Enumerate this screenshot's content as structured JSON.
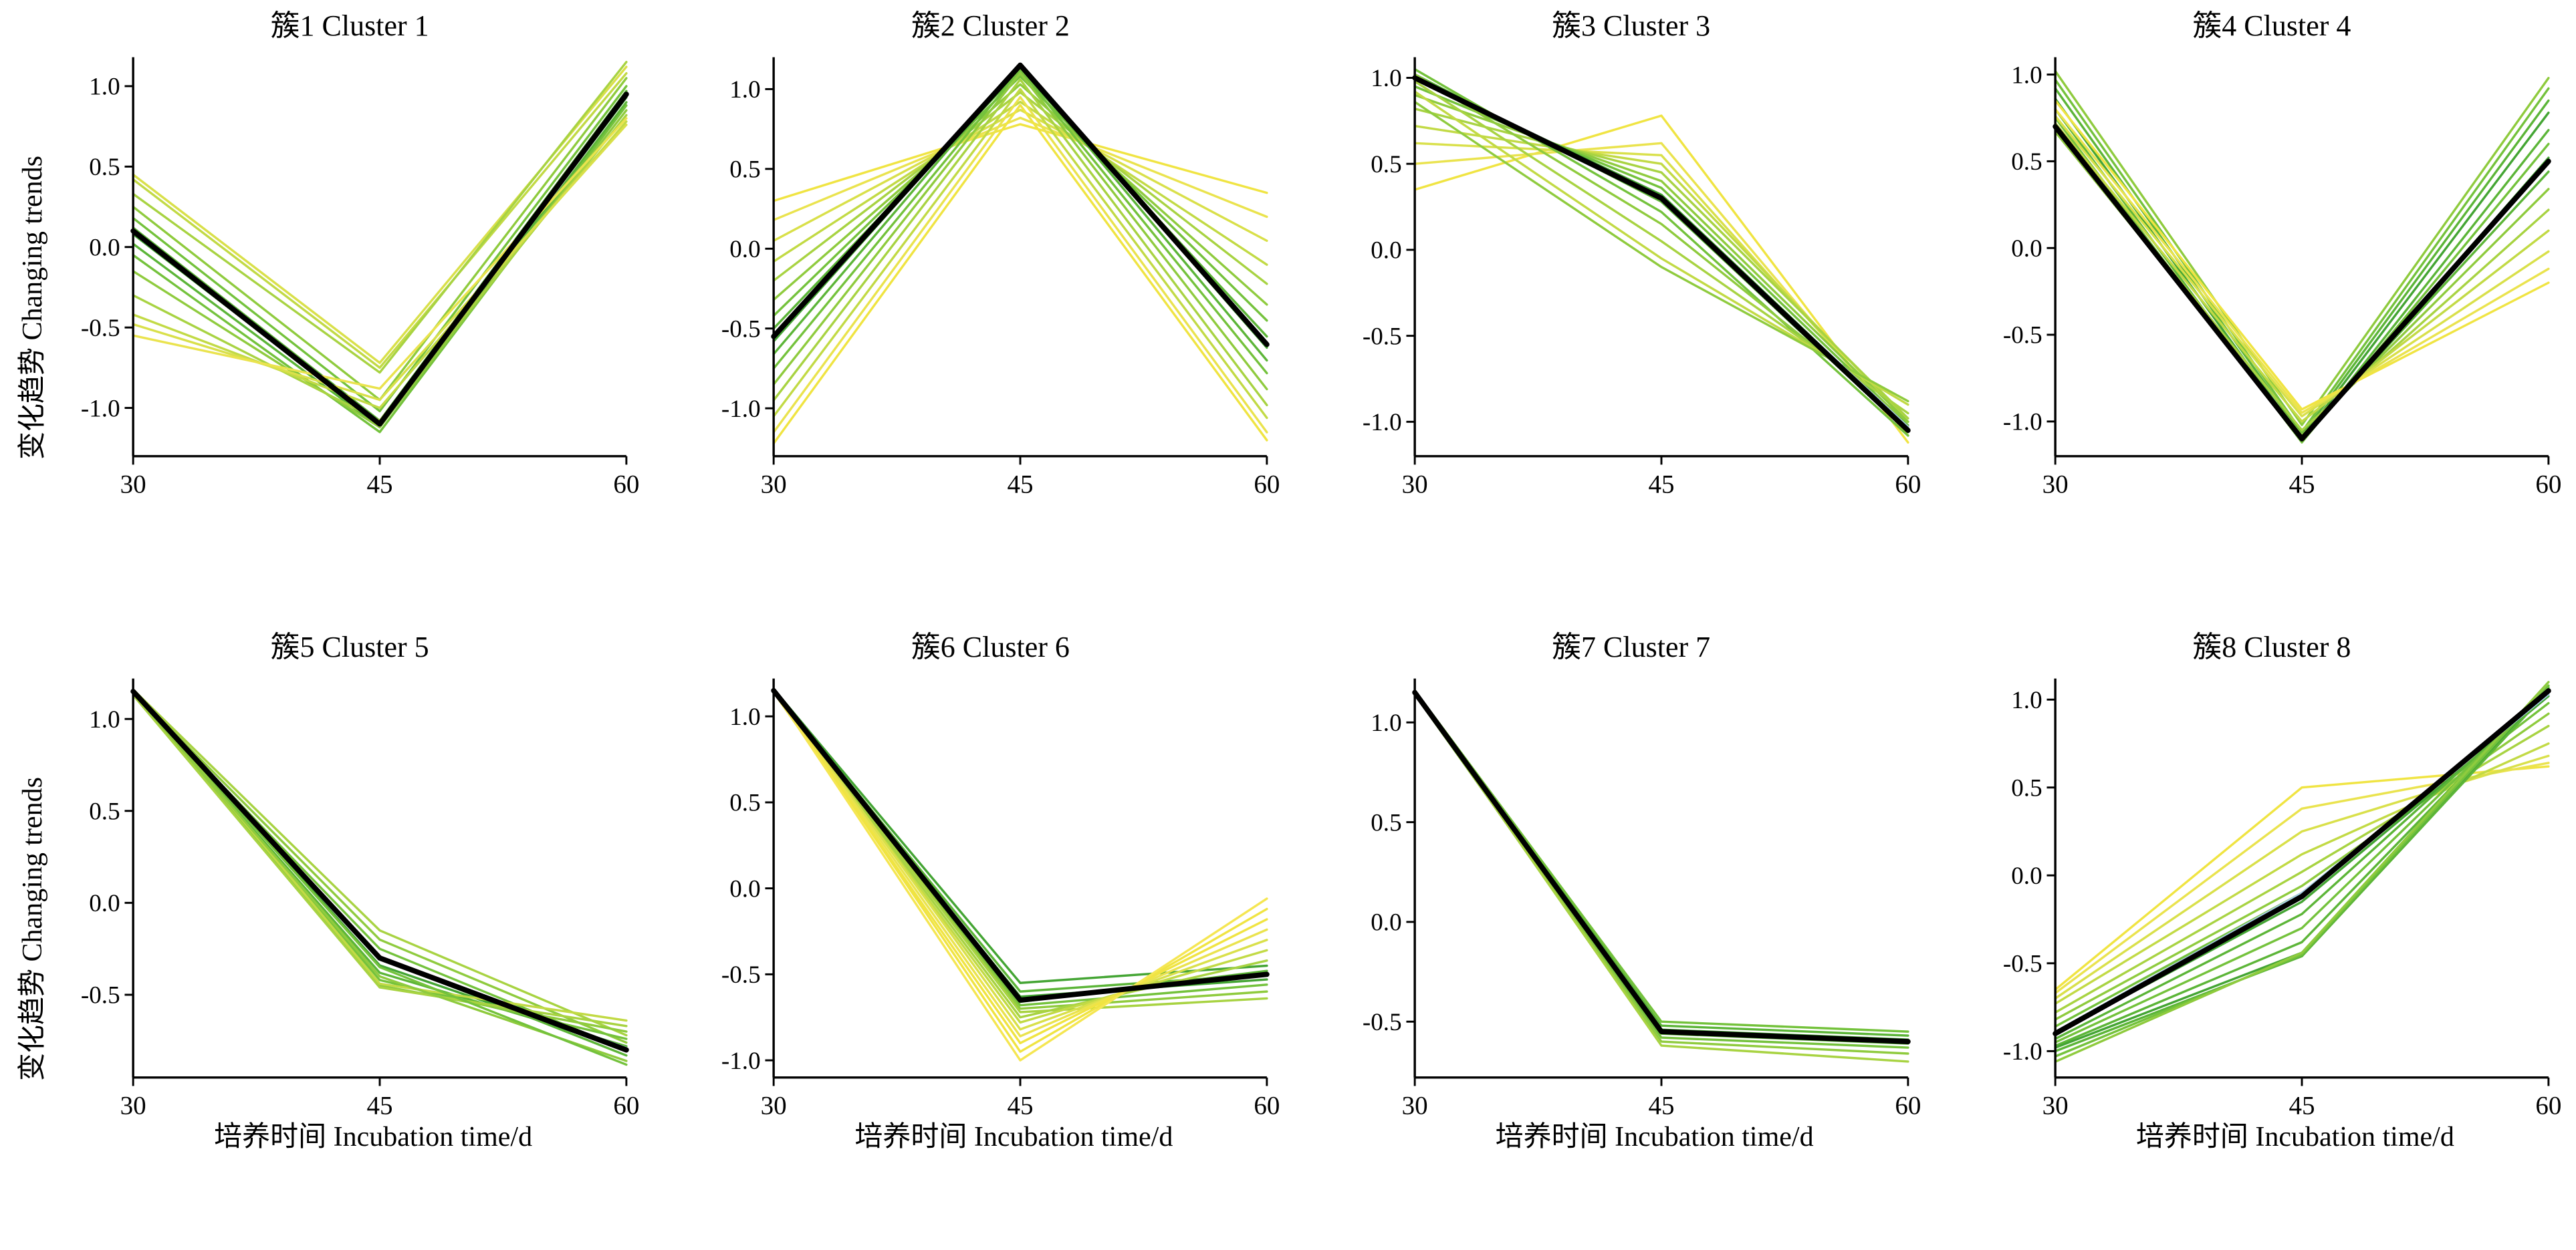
{
  "figure": {
    "ylabel": "变化趋势 Changing trends",
    "xlabel": "培养时间 Incubation time/d"
  },
  "colors": {
    "centroid": "#000000",
    "member_highlight": "#a6cee3",
    "axis": "#000000"
  },
  "chart_data": [
    {
      "type": "line",
      "title": "簇1 Cluster 1",
      "x": [
        30,
        45,
        60
      ],
      "xticks": [
        30,
        45,
        60
      ],
      "yticks": [
        1.0,
        0.5,
        0.0,
        -0.5,
        -1.0
      ],
      "ylim": [
        -1.3,
        1.18
      ],
      "centroid": [
        0.1,
        -1.1,
        0.95
      ],
      "members": [
        {
          "values": [
            0.45,
            -0.72,
            1.12
          ],
          "color": "#d9e04a"
        },
        {
          "values": [
            0.42,
            -0.75,
            1.08
          ],
          "color": "#c2da45"
        },
        {
          "values": [
            0.33,
            -0.78,
            1.15
          ],
          "color": "#a8d342"
        },
        {
          "values": [
            0.25,
            -0.95,
            1.05
          ],
          "color": "#8fcb3e"
        },
        {
          "values": [
            0.18,
            -1.02,
            1.0
          ],
          "color": "#74c23c"
        },
        {
          "values": [
            0.12,
            -1.08,
            0.97
          ],
          "color": "#5cb538"
        },
        {
          "values": [
            0.08,
            -1.1,
            0.93
          ],
          "color": "#44a534"
        },
        {
          "values": [
            0.02,
            -1.12,
            0.9
          ],
          "color": "#5cb538"
        },
        {
          "values": [
            -0.05,
            -1.15,
            0.88
          ],
          "color": "#74c23c"
        },
        {
          "values": [
            -0.15,
            -1.12,
            0.85
          ],
          "color": "#8fcb3e"
        },
        {
          "values": [
            -0.3,
            -1.08,
            0.82
          ],
          "color": "#a8d342"
        },
        {
          "values": [
            -0.42,
            -1.0,
            0.78
          ],
          "color": "#c2da45"
        },
        {
          "values": [
            -0.48,
            -0.95,
            0.76
          ],
          "color": "#d9e04a"
        },
        {
          "values": [
            -0.55,
            -0.88,
            0.8
          ],
          "color": "#eae34e"
        },
        {
          "values": [
            0.1,
            -1.09,
            0.94
          ],
          "color": "#a6cee3"
        }
      ]
    },
    {
      "type": "line",
      "title": "簇2 Cluster 2",
      "x": [
        30,
        45,
        60
      ],
      "xticks": [
        30,
        45,
        60
      ],
      "yticks": [
        1.0,
        0.5,
        0.0,
        -0.5,
        -1.0
      ],
      "ylim": [
        -1.3,
        1.2
      ],
      "centroid": [
        -0.55,
        1.15,
        -0.6
      ],
      "members": [
        {
          "values": [
            0.3,
            0.78,
            0.35
          ],
          "color": "#f0e442"
        },
        {
          "values": [
            0.18,
            0.82,
            0.2
          ],
          "color": "#eae34e"
        },
        {
          "values": [
            0.05,
            0.87,
            0.05
          ],
          "color": "#d9e04a"
        },
        {
          "values": [
            -0.08,
            0.92,
            -0.1
          ],
          "color": "#c2da45"
        },
        {
          "values": [
            -0.2,
            0.98,
            -0.22
          ],
          "color": "#a8d342"
        },
        {
          "values": [
            -0.32,
            1.03,
            -0.35
          ],
          "color": "#8fcb3e"
        },
        {
          "values": [
            -0.42,
            1.08,
            -0.45
          ],
          "color": "#74c23c"
        },
        {
          "values": [
            -0.5,
            1.12,
            -0.55
          ],
          "color": "#5cb538"
        },
        {
          "values": [
            -0.58,
            1.15,
            -0.62
          ],
          "color": "#44a534"
        },
        {
          "values": [
            -0.66,
            1.15,
            -0.7
          ],
          "color": "#5cb538"
        },
        {
          "values": [
            -0.75,
            1.12,
            -0.78
          ],
          "color": "#74c23c"
        },
        {
          "values": [
            -0.85,
            1.1,
            -0.88
          ],
          "color": "#8fcb3e"
        },
        {
          "values": [
            -0.95,
            1.06,
            -0.98
          ],
          "color": "#a8d342"
        },
        {
          "values": [
            -1.05,
            1.0,
            -1.06
          ],
          "color": "#c2da45"
        },
        {
          "values": [
            -1.15,
            0.95,
            -1.15
          ],
          "color": "#eae34e"
        },
        {
          "values": [
            -1.22,
            0.9,
            -1.2
          ],
          "color": "#f0e442"
        },
        {
          "values": [
            -0.55,
            1.14,
            -0.6
          ],
          "color": "#a6cee3"
        }
      ]
    },
    {
      "type": "line",
      "title": "簇3 Cluster 3",
      "x": [
        30,
        45,
        60
      ],
      "xticks": [
        30,
        45,
        60
      ],
      "yticks": [
        1.0,
        0.5,
        0.0,
        -0.5,
        -1.0
      ],
      "ylim": [
        -1.2,
        1.12
      ],
      "centroid": [
        1.0,
        0.3,
        -1.05
      ],
      "members": [
        {
          "values": [
            0.35,
            0.78,
            -1.12
          ],
          "color": "#f0e442"
        },
        {
          "values": [
            0.5,
            0.62,
            -1.08
          ],
          "color": "#eae34e"
        },
        {
          "values": [
            0.62,
            0.55,
            -1.05
          ],
          "color": "#d9e04a"
        },
        {
          "values": [
            0.72,
            0.5,
            -1.0
          ],
          "color": "#c2da45"
        },
        {
          "values": [
            0.82,
            0.45,
            -0.98
          ],
          "color": "#a8d342"
        },
        {
          "values": [
            0.9,
            0.4,
            -1.0
          ],
          "color": "#8fcb3e"
        },
        {
          "values": [
            0.95,
            0.36,
            -1.02
          ],
          "color": "#74c23c"
        },
        {
          "values": [
            1.0,
            0.32,
            -1.04
          ],
          "color": "#44a534"
        },
        {
          "values": [
            1.02,
            0.28,
            -1.06
          ],
          "color": "#5cb538"
        },
        {
          "values": [
            1.05,
            0.22,
            -1.08
          ],
          "color": "#74c23c"
        },
        {
          "values": [
            1.02,
            0.15,
            -1.0
          ],
          "color": "#8fcb3e"
        },
        {
          "values": [
            0.98,
            0.05,
            -0.95
          ],
          "color": "#a8d342"
        },
        {
          "values": [
            0.92,
            -0.05,
            -0.9
          ],
          "color": "#c2da45"
        },
        {
          "values": [
            0.86,
            -0.1,
            -0.88
          ],
          "color": "#8fcb3e"
        },
        {
          "values": [
            1.0,
            0.3,
            -1.03
          ],
          "color": "#a6cee3"
        }
      ]
    },
    {
      "type": "line",
      "title": "簇4 Cluster 4",
      "x": [
        30,
        45,
        60
      ],
      "xticks": [
        30,
        45,
        60
      ],
      "yticks": [
        1.0,
        0.5,
        0.0,
        -0.5,
        -1.0
      ],
      "ylim": [
        -1.2,
        1.1
      ],
      "centroid": [
        0.7,
        -1.1,
        0.5
      ],
      "members": [
        {
          "values": [
            1.02,
            -1.02,
            0.98
          ],
          "color": "#8fcb3e"
        },
        {
          "values": [
            0.97,
            -1.06,
            0.92
          ],
          "color": "#74c23c"
        },
        {
          "values": [
            0.92,
            -1.08,
            0.85
          ],
          "color": "#5cb538"
        },
        {
          "values": [
            0.86,
            -1.1,
            0.78
          ],
          "color": "#44a534"
        },
        {
          "values": [
            0.8,
            -1.12,
            0.68
          ],
          "color": "#5cb538"
        },
        {
          "values": [
            0.75,
            -1.12,
            0.6
          ],
          "color": "#74c23c"
        },
        {
          "values": [
            0.71,
            -1.11,
            0.52
          ],
          "color": "#44a534"
        },
        {
          "values": [
            0.68,
            -1.1,
            0.44
          ],
          "color": "#5cb538"
        },
        {
          "values": [
            0.67,
            -1.08,
            0.34
          ],
          "color": "#8fcb3e"
        },
        {
          "values": [
            0.69,
            -1.05,
            0.22
          ],
          "color": "#a8d342"
        },
        {
          "values": [
            0.72,
            -1.0,
            0.1
          ],
          "color": "#c2da45"
        },
        {
          "values": [
            0.76,
            -0.97,
            -0.02
          ],
          "color": "#d9e04a"
        },
        {
          "values": [
            0.8,
            -0.95,
            -0.12
          ],
          "color": "#eae34e"
        },
        {
          "values": [
            0.85,
            -0.93,
            -0.2
          ],
          "color": "#f0e442"
        },
        {
          "values": [
            0.7,
            -1.1,
            0.49
          ],
          "color": "#a6cee3"
        }
      ]
    },
    {
      "type": "line",
      "title": "簇5 Cluster 5",
      "x": [
        30,
        45,
        60
      ],
      "xticks": [
        30,
        45,
        60
      ],
      "yticks": [
        1.0,
        0.5,
        0.0,
        -0.5
      ],
      "ylim": [
        -0.95,
        1.22
      ],
      "centroid": [
        1.15,
        -0.3,
        -0.8
      ],
      "members": [
        {
          "values": [
            1.16,
            -0.15,
            -0.72
          ],
          "color": "#a8d342"
        },
        {
          "values": [
            1.15,
            -0.2,
            -0.76
          ],
          "color": "#8fcb3e"
        },
        {
          "values": [
            1.14,
            -0.25,
            -0.8
          ],
          "color": "#74c23c"
        },
        {
          "values": [
            1.16,
            -0.3,
            -0.83
          ],
          "color": "#5cb538"
        },
        {
          "values": [
            1.15,
            -0.34,
            -0.8
          ],
          "color": "#44a534"
        },
        {
          "values": [
            1.14,
            -0.38,
            -0.78
          ],
          "color": "#5cb538"
        },
        {
          "values": [
            1.16,
            -0.42,
            -0.74
          ],
          "color": "#74c23c"
        },
        {
          "values": [
            1.15,
            -0.45,
            -0.7
          ],
          "color": "#8fcb3e"
        },
        {
          "values": [
            1.13,
            -0.46,
            -0.67
          ],
          "color": "#a8d342"
        },
        {
          "values": [
            1.16,
            -0.44,
            -0.64
          ],
          "color": "#c2da45"
        },
        {
          "values": [
            1.14,
            -0.4,
            -0.86
          ],
          "color": "#8fcb3e"
        },
        {
          "values": [
            1.15,
            -0.35,
            -0.88
          ],
          "color": "#74c23c"
        },
        {
          "values": [
            1.15,
            -0.3,
            -0.79
          ],
          "color": "#a6cee3"
        }
      ]
    },
    {
      "type": "line",
      "title": "簇6 Cluster 6",
      "x": [
        30,
        45,
        60
      ],
      "xticks": [
        30,
        45,
        60
      ],
      "yticks": [
        1.0,
        0.5,
        0.0,
        -0.5,
        -1.0
      ],
      "ylim": [
        -1.1,
        1.22
      ],
      "centroid": [
        1.15,
        -0.65,
        -0.5
      ],
      "members": [
        {
          "values": [
            1.16,
            -0.55,
            -0.45
          ],
          "color": "#44a534"
        },
        {
          "values": [
            1.15,
            -0.6,
            -0.5
          ],
          "color": "#5cb538"
        },
        {
          "values": [
            1.14,
            -0.63,
            -0.53
          ],
          "color": "#44a534"
        },
        {
          "values": [
            1.16,
            -0.66,
            -0.48
          ],
          "color": "#5cb538"
        },
        {
          "values": [
            1.15,
            -0.68,
            -0.56
          ],
          "color": "#74c23c"
        },
        {
          "values": [
            1.14,
            -0.7,
            -0.6
          ],
          "color": "#8fcb3e"
        },
        {
          "values": [
            1.16,
            -0.72,
            -0.64
          ],
          "color": "#a8d342"
        },
        {
          "values": [
            1.15,
            -0.75,
            -0.42
          ],
          "color": "#a8d342"
        },
        {
          "values": [
            1.14,
            -0.78,
            -0.36
          ],
          "color": "#c2da45"
        },
        {
          "values": [
            1.16,
            -0.82,
            -0.3
          ],
          "color": "#d9e04a"
        },
        {
          "values": [
            1.15,
            -0.86,
            -0.24
          ],
          "color": "#eae34e"
        },
        {
          "values": [
            1.14,
            -0.9,
            -0.18
          ],
          "color": "#f0e442"
        },
        {
          "values": [
            1.16,
            -0.95,
            -0.12
          ],
          "color": "#f0e442"
        },
        {
          "values": [
            1.15,
            -1.0,
            -0.06
          ],
          "color": "#f5e652"
        },
        {
          "values": [
            1.15,
            -0.65,
            -0.5
          ],
          "color": "#a6cee3"
        }
      ]
    },
    {
      "type": "line",
      "title": "簇7 Cluster 7",
      "x": [
        30,
        45,
        60
      ],
      "xticks": [
        30,
        45,
        60
      ],
      "yticks": [
        1.0,
        0.5,
        0.0,
        -0.5
      ],
      "ylim": [
        -0.78,
        1.22
      ],
      "centroid": [
        1.15,
        -0.55,
        -0.6
      ],
      "members": [
        {
          "values": [
            1.16,
            -0.5,
            -0.55
          ],
          "color": "#74c23c"
        },
        {
          "values": [
            1.15,
            -0.52,
            -0.57
          ],
          "color": "#5cb538"
        },
        {
          "values": [
            1.14,
            -0.54,
            -0.59
          ],
          "color": "#44a534"
        },
        {
          "values": [
            1.16,
            -0.56,
            -0.61
          ],
          "color": "#5cb538"
        },
        {
          "values": [
            1.15,
            -0.58,
            -0.63
          ],
          "color": "#74c23c"
        },
        {
          "values": [
            1.14,
            -0.6,
            -0.66
          ],
          "color": "#8fcb3e"
        },
        {
          "values": [
            1.15,
            -0.62,
            -0.7
          ],
          "color": "#a8d342"
        },
        {
          "values": [
            1.15,
            -0.55,
            -0.6
          ],
          "color": "#a6cee3"
        }
      ]
    },
    {
      "type": "line",
      "title": "簇8 Cluster 8",
      "x": [
        30,
        45,
        60
      ],
      "xticks": [
        30,
        45,
        60
      ],
      "yticks": [
        1.0,
        0.5,
        0.0,
        -0.5,
        -1.0
      ],
      "ylim": [
        -1.15,
        1.12
      ],
      "centroid": [
        -0.9,
        -0.12,
        1.05
      ],
      "members": [
        {
          "values": [
            -0.65,
            0.5,
            0.62
          ],
          "color": "#f0e442"
        },
        {
          "values": [
            -0.67,
            0.38,
            0.64
          ],
          "color": "#eae34e"
        },
        {
          "values": [
            -0.7,
            0.25,
            0.68
          ],
          "color": "#d9e04a"
        },
        {
          "values": [
            -0.73,
            0.12,
            0.75
          ],
          "color": "#c2da45"
        },
        {
          "values": [
            -0.78,
            0.02,
            0.85
          ],
          "color": "#a8d342"
        },
        {
          "values": [
            -0.82,
            -0.06,
            0.92
          ],
          "color": "#8fcb3e"
        },
        {
          "values": [
            -0.86,
            -0.1,
            0.98
          ],
          "color": "#74c23c"
        },
        {
          "values": [
            -0.9,
            -0.15,
            1.02
          ],
          "color": "#44a534"
        },
        {
          "values": [
            -0.93,
            -0.22,
            1.05
          ],
          "color": "#5cb538"
        },
        {
          "values": [
            -0.95,
            -0.3,
            1.06
          ],
          "color": "#74c23c"
        },
        {
          "values": [
            -0.97,
            -0.38,
            1.07
          ],
          "color": "#5cb538"
        },
        {
          "values": [
            -0.98,
            -0.44,
            1.06
          ],
          "color": "#44a534"
        },
        {
          "values": [
            -1.0,
            -0.46,
            1.05
          ],
          "color": "#5cb538"
        },
        {
          "values": [
            -1.03,
            -0.45,
            1.08
          ],
          "color": "#74c23c"
        },
        {
          "values": [
            -1.06,
            -0.44,
            1.1
          ],
          "color": "#8fcb3e"
        },
        {
          "values": [
            -0.89,
            -0.1,
            1.03
          ],
          "color": "#a6cee3"
        }
      ]
    }
  ]
}
